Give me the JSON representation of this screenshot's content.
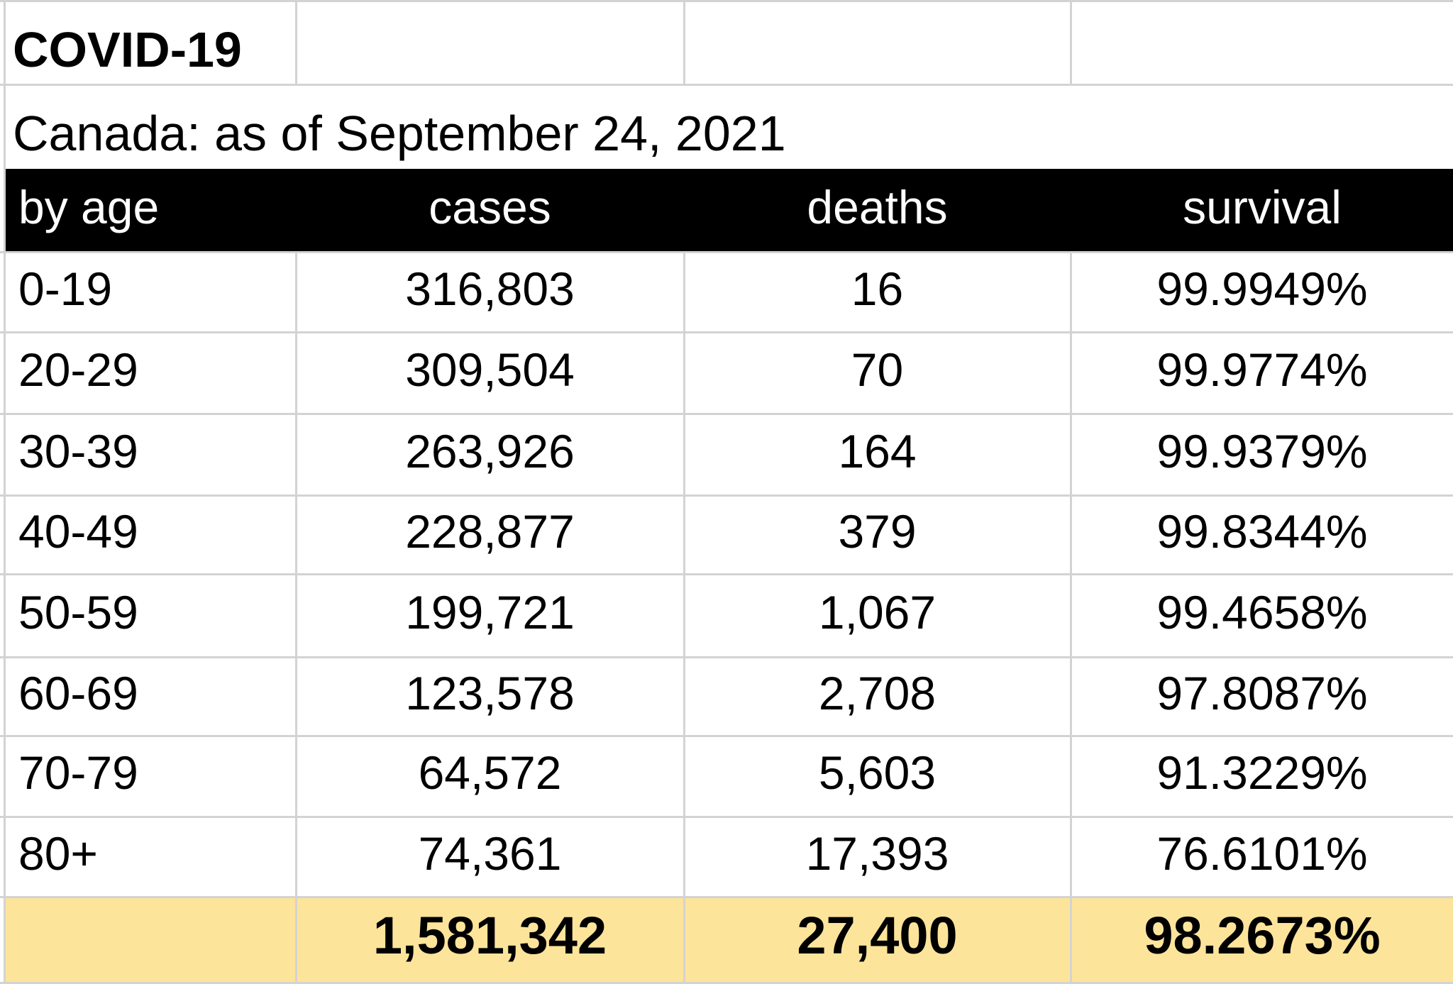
{
  "chart_data": {
    "type": "table",
    "title": "COVID-19",
    "subtitle": "Canada: as of September 24, 2021",
    "columns": [
      "by age",
      "cases",
      "deaths",
      "survival"
    ],
    "rows": [
      [
        "0-19",
        "316,803",
        "16",
        "99.9949%"
      ],
      [
        "20-29",
        "309,504",
        "70",
        "99.9774%"
      ],
      [
        "30-39",
        "263,926",
        "164",
        "99.9379%"
      ],
      [
        "40-49",
        "228,877",
        "379",
        "99.8344%"
      ],
      [
        "50-59",
        "199,721",
        "1,067",
        "99.4658%"
      ],
      [
        "60-69",
        "123,578",
        "2,708",
        "97.8087%"
      ],
      [
        "70-79",
        "64,572",
        "5,603",
        "91.3229%"
      ],
      [
        "80+",
        "74,361",
        "17,393",
        "76.6101%"
      ]
    ],
    "totals": [
      "",
      "1,581,342",
      "27,400",
      "98.2673%"
    ]
  },
  "colors": {
    "header_background": "#000000",
    "header_text": "#ffffff",
    "total_background": "#fde49b",
    "gridline": "#d3d3d3"
  }
}
